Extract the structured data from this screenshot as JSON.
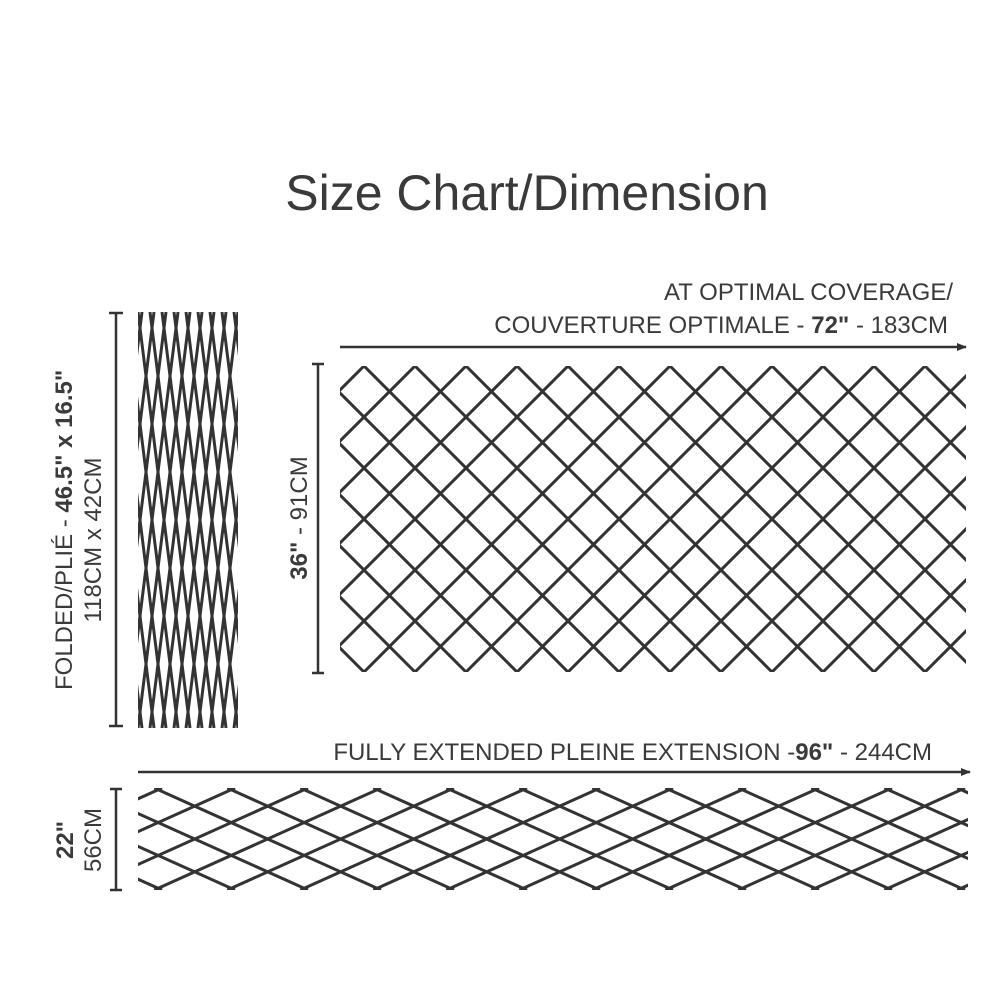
{
  "title": "Size Chart/Dimension",
  "folded": {
    "prefix": "FOLDED/PLIÉ - ",
    "imperial": "46.5\" x 16.5\"",
    "metric": "118CM x 42CM"
  },
  "optimal": {
    "line1": "AT OPTIMAL COVERAGE/",
    "line2_prefix": "COUVERTURE OPTIMALE - ",
    "imperial": "72\"",
    "metric": " - 183CM",
    "height_imperial": "36\"",
    "height_metric": " - 91CM"
  },
  "extended": {
    "prefix": "FULLY EXTENDED  PLEINE EXTENSION -",
    "imperial": "96\"",
    "metric": " - 244CM",
    "height_imperial": "22\"",
    "height_metric": "56CM"
  },
  "colors": {
    "ink": "#333333",
    "background": "#ffffff"
  }
}
